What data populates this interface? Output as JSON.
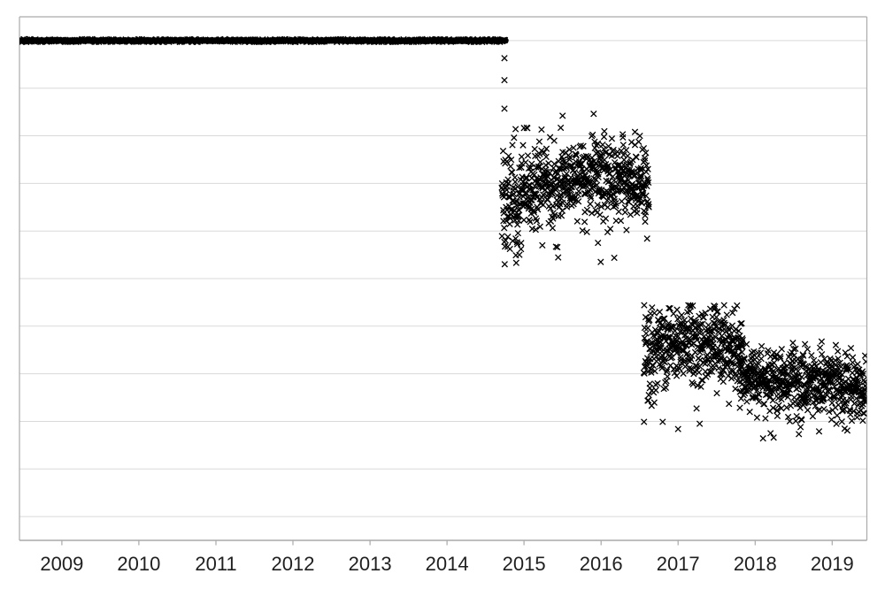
{
  "page": {
    "background_color": "#ffffff",
    "title": ""
  },
  "chart_data": {
    "type": "scatter",
    "title": "",
    "subtitle": "",
    "xlabel": "",
    "ylabel": "",
    "legend": "none",
    "grid": "horizontal-only",
    "marker": {
      "shape": "x",
      "color": "#000000",
      "size": 6.4,
      "stroke_width": 1.3
    },
    "colors": {
      "plot_border": "#ababab",
      "axis_line": "#a9a9a9",
      "gridline": "#d9d9d9",
      "tick_label": "#1f1f1f",
      "data": "#000000"
    },
    "x_axis": {
      "min": 2008.45,
      "max": 2019.45,
      "ticks": [
        {
          "value": 2009,
          "label": "2009"
        },
        {
          "value": 2010,
          "label": "2010"
        },
        {
          "value": 2011,
          "label": "2011"
        },
        {
          "value": 2012,
          "label": "2012"
        },
        {
          "value": 2013,
          "label": "2013"
        },
        {
          "value": 2014,
          "label": "2014"
        },
        {
          "value": 2015,
          "label": "2015"
        },
        {
          "value": 2016,
          "label": "2016"
        },
        {
          "value": 2017,
          "label": "2017"
        },
        {
          "value": 2018,
          "label": "2018"
        },
        {
          "value": 2019,
          "label": "2019"
        }
      ]
    },
    "y_axis": {
      "labels_visible": false,
      "min": -0.5,
      "max": 10.5,
      "gridlines_at": [
        0,
        1,
        2,
        3,
        4,
        5,
        6,
        7,
        8,
        9,
        10
      ],
      "note": "y axis has no visible labels; values expressed in gridline units (0 = lowest gridline, 10 = top gridline)"
    },
    "seed": 20140917,
    "points_per_year": 365,
    "flat_series": {
      "description": "dense horizontal band of overlapping x markers forming a thick black line on the top gridline",
      "value": 10.0,
      "t_start": 2008.45,
      "t_end": 2014.76,
      "thickness": 7,
      "marker_step_days": 4
    },
    "scatter_segments": [
      {
        "name": "cluster-2014.7-2016.6",
        "t_start": 2014.71,
        "t_end": 2016.62,
        "mean_keyframes": [
          [
            2014.71,
            6.5
          ],
          [
            2015.0,
            6.85
          ],
          [
            2015.45,
            7.05
          ],
          [
            2015.95,
            7.18
          ],
          [
            2016.35,
            7.12
          ],
          [
            2016.62,
            7.02
          ]
        ],
        "sd_keyframes": [
          [
            2014.71,
            0.6
          ],
          [
            2015.1,
            0.46
          ],
          [
            2015.6,
            0.4
          ],
          [
            2016.62,
            0.36
          ]
        ],
        "tail_prob": 0.05,
        "tail_scale": 0.5,
        "v_min": 5.3,
        "v_max": 8.5
      },
      {
        "name": "cluster-2016.6-2017.8",
        "t_start": 2016.555,
        "t_end": 2017.84,
        "mean_keyframes": [
          [
            2016.555,
            3.5
          ],
          [
            2016.75,
            3.62
          ],
          [
            2017.1,
            3.72
          ],
          [
            2017.45,
            3.7
          ],
          [
            2017.84,
            3.52
          ]
        ],
        "sd_keyframes": [
          [
            2016.555,
            0.5
          ],
          [
            2016.8,
            0.42
          ],
          [
            2017.84,
            0.4
          ]
        ],
        "tail_prob": 0.06,
        "tail_scale": 0.5,
        "v_min": 1.8,
        "v_max": 4.45
      },
      {
        "name": "cluster-2017.8-2019.45",
        "t_start": 2017.8,
        "t_end": 2019.45,
        "mean_keyframes": [
          [
            2017.8,
            2.97
          ],
          [
            2018.25,
            2.88
          ],
          [
            2018.8,
            2.8
          ],
          [
            2019.45,
            2.72
          ]
        ],
        "sd_keyframes": [
          [
            2017.8,
            0.38
          ],
          [
            2018.3,
            0.32
          ],
          [
            2019.45,
            0.34
          ]
        ],
        "tail_prob": 0.05,
        "tail_scale": 0.45,
        "v_min": 1.6,
        "v_max": 3.72
      }
    ],
    "outlier_points": [
      [
        2014.745,
        9.63
      ],
      [
        2014.745,
        9.17
      ],
      [
        2014.745,
        8.57
      ],
      [
        2014.89,
        8.14
      ],
      [
        2014.87,
        7.96
      ],
      [
        2015.5,
        8.42
      ],
      [
        2016.28,
        8.03
      ],
      [
        2016.44,
        8.08
      ],
      [
        2014.76,
        5.8
      ],
      [
        2014.94,
        5.5
      ],
      [
        2014.96,
        5.62
      ],
      [
        2015.96,
        5.75
      ],
      [
        2015.995,
        5.35
      ],
      [
        2016.33,
        6.02
      ],
      [
        2016.56,
        4.44
      ],
      [
        2016.8,
        1.99
      ],
      [
        2017.0,
        1.84
      ],
      [
        2017.28,
        1.95
      ],
      [
        2017.93,
        2.2
      ],
      [
        2018.2,
        1.75
      ],
      [
        2018.24,
        1.66
      ],
      [
        2018.49,
        3.65
      ],
      [
        2018.59,
        1.88
      ],
      [
        2018.83,
        1.79
      ]
    ]
  }
}
